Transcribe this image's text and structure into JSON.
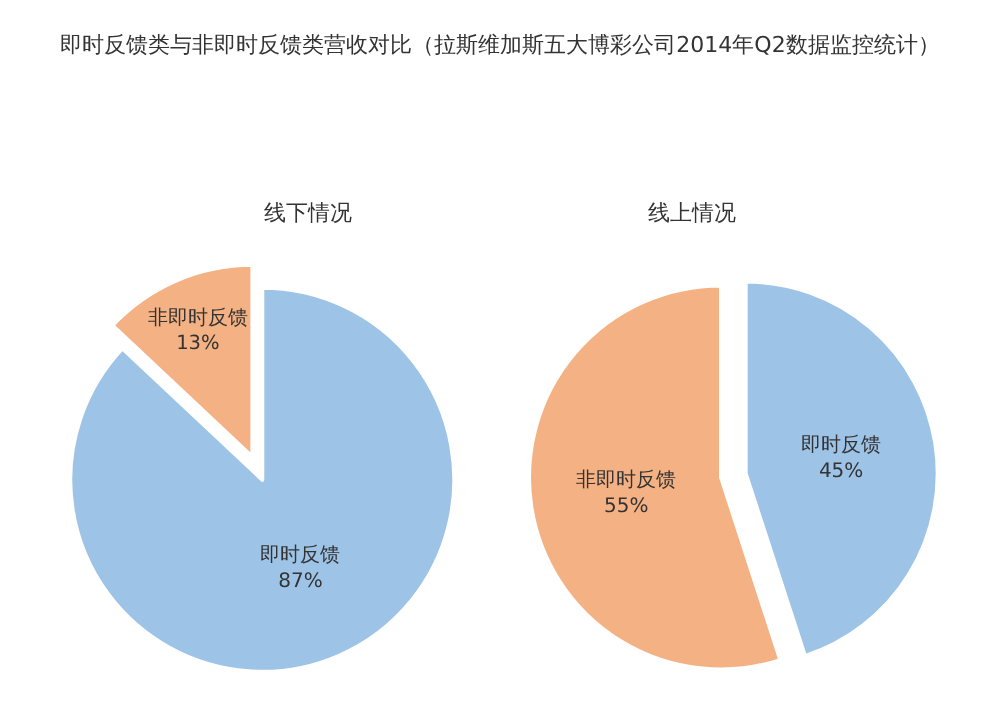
{
  "chart_data": [
    {
      "type": "pie",
      "title": "即时反馈类与非即时反馈类营收对比（拉斯维加斯五大博彩公司2014年Q2数据监控统计）",
      "subtitle": "线下情况",
      "categories": [
        "即时反馈",
        "非即时反馈"
      ],
      "values": [
        87,
        13
      ],
      "value_labels": [
        "87%",
        "13%"
      ],
      "colors": [
        "#9dc3e6",
        "#f4b183"
      ],
      "legend": false
    },
    {
      "type": "pie",
      "subtitle": "线上情况",
      "categories": [
        "即时反馈",
        "非即时反馈"
      ],
      "values": [
        45,
        55
      ],
      "value_labels": [
        "45%",
        "55%"
      ],
      "colors": [
        "#9dc3e6",
        "#f4b183"
      ],
      "legend": false
    }
  ]
}
